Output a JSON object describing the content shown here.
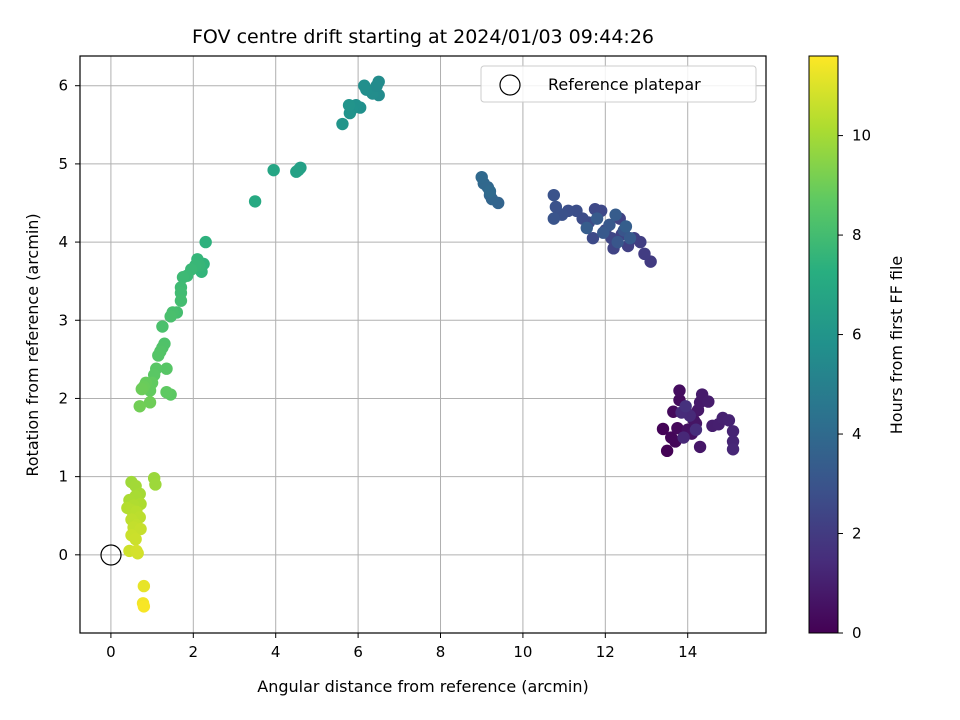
{
  "chart_data": {
    "type": "scatter",
    "title": "FOV centre drift starting at 2024/01/03 09:44:26",
    "xlabel": "Angular distance from reference (arcmin)",
    "ylabel": "Rotation from reference (arcmin)",
    "xlim": [
      -0.75,
      15.9
    ],
    "ylim": [
      -1.0,
      6.38
    ],
    "xticks": [
      0,
      2,
      4,
      6,
      8,
      10,
      12,
      14
    ],
    "yticks": [
      0,
      1,
      2,
      3,
      4,
      5,
      6
    ],
    "grid": true,
    "legend": {
      "placement": "top-right",
      "entries": [
        "Reference platepar"
      ]
    },
    "reference_point": {
      "x": 0,
      "y": 0,
      "label": "Reference platepar"
    },
    "colorbar": {
      "label": "Hours from first FF file",
      "range": [
        0,
        11.6
      ],
      "ticks": [
        0,
        2,
        4,
        6,
        8,
        10
      ],
      "colormap": "viridis"
    },
    "points": [
      [
        13.5,
        1.33,
        0.05
      ],
      [
        13.4,
        1.61,
        0.1
      ],
      [
        13.6,
        1.5,
        0.15
      ],
      [
        13.7,
        1.45,
        0.2
      ],
      [
        13.75,
        1.62,
        0.25
      ],
      [
        13.65,
        1.83,
        0.3
      ],
      [
        13.8,
        1.98,
        0.35
      ],
      [
        13.8,
        2.1,
        0.4
      ],
      [
        13.95,
        1.85,
        0.45
      ],
      [
        14.0,
        1.6,
        0.5
      ],
      [
        14.1,
        1.55,
        0.55
      ],
      [
        14.15,
        1.72,
        0.6
      ],
      [
        14.2,
        1.68,
        0.65
      ],
      [
        14.3,
        1.38,
        0.7
      ],
      [
        14.25,
        1.85,
        0.75
      ],
      [
        14.3,
        1.95,
        0.8
      ],
      [
        14.35,
        2.05,
        0.85
      ],
      [
        14.5,
        1.96,
        0.9
      ],
      [
        14.6,
        1.65,
        0.95
      ],
      [
        14.75,
        1.67,
        1.0
      ],
      [
        14.85,
        1.75,
        1.05
      ],
      [
        15.0,
        1.72,
        1.1
      ],
      [
        15.1,
        1.58,
        1.15
      ],
      [
        15.1,
        1.45,
        1.2
      ],
      [
        15.1,
        1.35,
        1.25
      ],
      [
        13.9,
        1.5,
        1.3
      ],
      [
        14.05,
        1.78,
        1.35
      ],
      [
        13.85,
        1.82,
        1.4
      ],
      [
        14.2,
        1.6,
        1.5
      ],
      [
        13.95,
        1.9,
        1.6
      ],
      [
        13.1,
        3.75,
        2.0
      ],
      [
        12.95,
        3.85,
        2.05
      ],
      [
        12.85,
        4.0,
        2.1
      ],
      [
        12.7,
        4.05,
        2.15
      ],
      [
        12.55,
        3.95,
        2.2
      ],
      [
        12.4,
        4.1,
        2.25
      ],
      [
        12.35,
        4.3,
        2.3
      ],
      [
        12.2,
        3.92,
        2.35
      ],
      [
        12.15,
        4.05,
        2.4
      ],
      [
        12.0,
        4.15,
        2.45
      ],
      [
        11.9,
        4.4,
        2.5
      ],
      [
        11.75,
        4.42,
        2.55
      ],
      [
        11.7,
        4.05,
        2.6
      ],
      [
        11.6,
        4.25,
        2.65
      ],
      [
        11.45,
        4.3,
        2.7
      ],
      [
        11.3,
        4.4,
        2.75
      ],
      [
        11.1,
        4.4,
        2.8
      ],
      [
        10.95,
        4.35,
        2.85
      ],
      [
        10.8,
        4.45,
        2.9
      ],
      [
        10.75,
        4.6,
        2.95
      ],
      [
        10.75,
        4.3,
        3.0
      ],
      [
        12.45,
        4.15,
        3.05
      ],
      [
        12.3,
        4.0,
        3.1
      ],
      [
        12.1,
        4.22,
        3.15
      ],
      [
        11.95,
        4.12,
        3.2
      ],
      [
        12.6,
        4.05,
        3.25
      ],
      [
        11.8,
        4.3,
        3.3
      ],
      [
        12.25,
        4.35,
        3.35
      ],
      [
        11.55,
        4.18,
        3.4
      ],
      [
        12.5,
        4.2,
        3.45
      ],
      [
        9.4,
        4.5,
        3.7
      ],
      [
        9.25,
        4.55,
        3.75
      ],
      [
        9.2,
        4.6,
        3.8
      ],
      [
        9.15,
        4.7,
        3.85
      ],
      [
        9.05,
        4.75,
        3.9
      ],
      [
        9.0,
        4.83,
        3.95
      ],
      [
        9.2,
        4.65,
        4.0
      ],
      [
        6.5,
        5.88,
        5.5
      ],
      [
        6.5,
        6.05,
        5.55
      ],
      [
        6.35,
        5.9,
        5.6
      ],
      [
        6.2,
        5.95,
        5.65
      ],
      [
        6.15,
        6.0,
        5.7
      ],
      [
        6.05,
        5.72,
        5.75
      ],
      [
        5.95,
        5.75,
        5.8
      ],
      [
        5.85,
        5.7,
        5.85
      ],
      [
        5.8,
        5.65,
        5.9
      ],
      [
        5.78,
        5.75,
        5.95
      ],
      [
        5.62,
        5.51,
        6.0
      ],
      [
        6.45,
        6.0,
        5.5
      ],
      [
        4.6,
        4.95,
        6.5
      ],
      [
        4.55,
        4.92,
        6.55
      ],
      [
        4.5,
        4.9,
        6.6
      ],
      [
        3.95,
        4.92,
        6.8
      ],
      [
        3.5,
        4.52,
        7.0
      ],
      [
        2.3,
        4.0,
        7.4
      ],
      [
        2.25,
        3.72,
        7.5
      ],
      [
        2.2,
        3.62,
        7.55
      ],
      [
        2.1,
        3.78,
        7.6
      ],
      [
        2.15,
        3.7,
        7.65
      ],
      [
        2.05,
        3.7,
        7.7
      ],
      [
        1.95,
        3.65,
        7.75
      ],
      [
        1.85,
        3.57,
        7.8
      ],
      [
        1.75,
        3.55,
        7.85
      ],
      [
        1.7,
        3.42,
        7.9
      ],
      [
        1.7,
        3.35,
        7.95
      ],
      [
        1.7,
        3.25,
        8.0
      ],
      [
        1.6,
        3.1,
        8.05
      ],
      [
        1.5,
        3.1,
        8.1
      ],
      [
        1.45,
        3.05,
        8.15
      ],
      [
        1.25,
        2.92,
        8.2
      ],
      [
        1.3,
        2.7,
        8.3
      ],
      [
        1.25,
        2.65,
        8.35
      ],
      [
        1.2,
        2.6,
        8.4
      ],
      [
        1.15,
        2.55,
        8.45
      ],
      [
        1.35,
        2.38,
        8.5
      ],
      [
        1.1,
        2.38,
        8.55
      ],
      [
        1.05,
        2.3,
        8.6
      ],
      [
        1.45,
        2.05,
        8.65
      ],
      [
        1.35,
        2.08,
        8.7
      ],
      [
        1.0,
        2.2,
        8.75
      ],
      [
        0.95,
        2.1,
        8.8
      ],
      [
        0.85,
        2.2,
        8.85
      ],
      [
        0.8,
        2.15,
        8.9
      ],
      [
        0.75,
        2.12,
        8.95
      ],
      [
        0.95,
        1.95,
        9.0
      ],
      [
        0.7,
        1.9,
        9.05
      ],
      [
        1.05,
        0.98,
        9.8
      ],
      [
        1.08,
        0.9,
        9.85
      ],
      [
        0.5,
        0.93,
        9.9
      ],
      [
        0.6,
        0.88,
        9.95
      ],
      [
        0.7,
        0.78,
        10.0
      ],
      [
        0.6,
        0.75,
        10.05
      ],
      [
        0.45,
        0.7,
        10.1
      ],
      [
        0.72,
        0.65,
        10.15
      ],
      [
        0.55,
        0.63,
        10.2
      ],
      [
        0.4,
        0.6,
        10.25
      ],
      [
        0.5,
        0.57,
        10.3
      ],
      [
        0.62,
        0.55,
        10.35
      ],
      [
        0.7,
        0.48,
        10.4
      ],
      [
        0.5,
        0.45,
        10.45
      ],
      [
        0.62,
        0.38,
        10.5
      ],
      [
        0.55,
        0.35,
        10.55
      ],
      [
        0.72,
        0.33,
        10.6
      ],
      [
        0.5,
        0.25,
        10.65
      ],
      [
        0.6,
        0.2,
        10.7
      ],
      [
        0.45,
        0.05,
        10.75
      ],
      [
        0.65,
        0.02,
        10.8
      ],
      [
        0.62,
        0.05,
        10.85
      ],
      [
        0.8,
        -0.4,
        11.2
      ],
      [
        0.78,
        -0.62,
        11.4
      ],
      [
        0.8,
        -0.66,
        11.5
      ]
    ]
  }
}
